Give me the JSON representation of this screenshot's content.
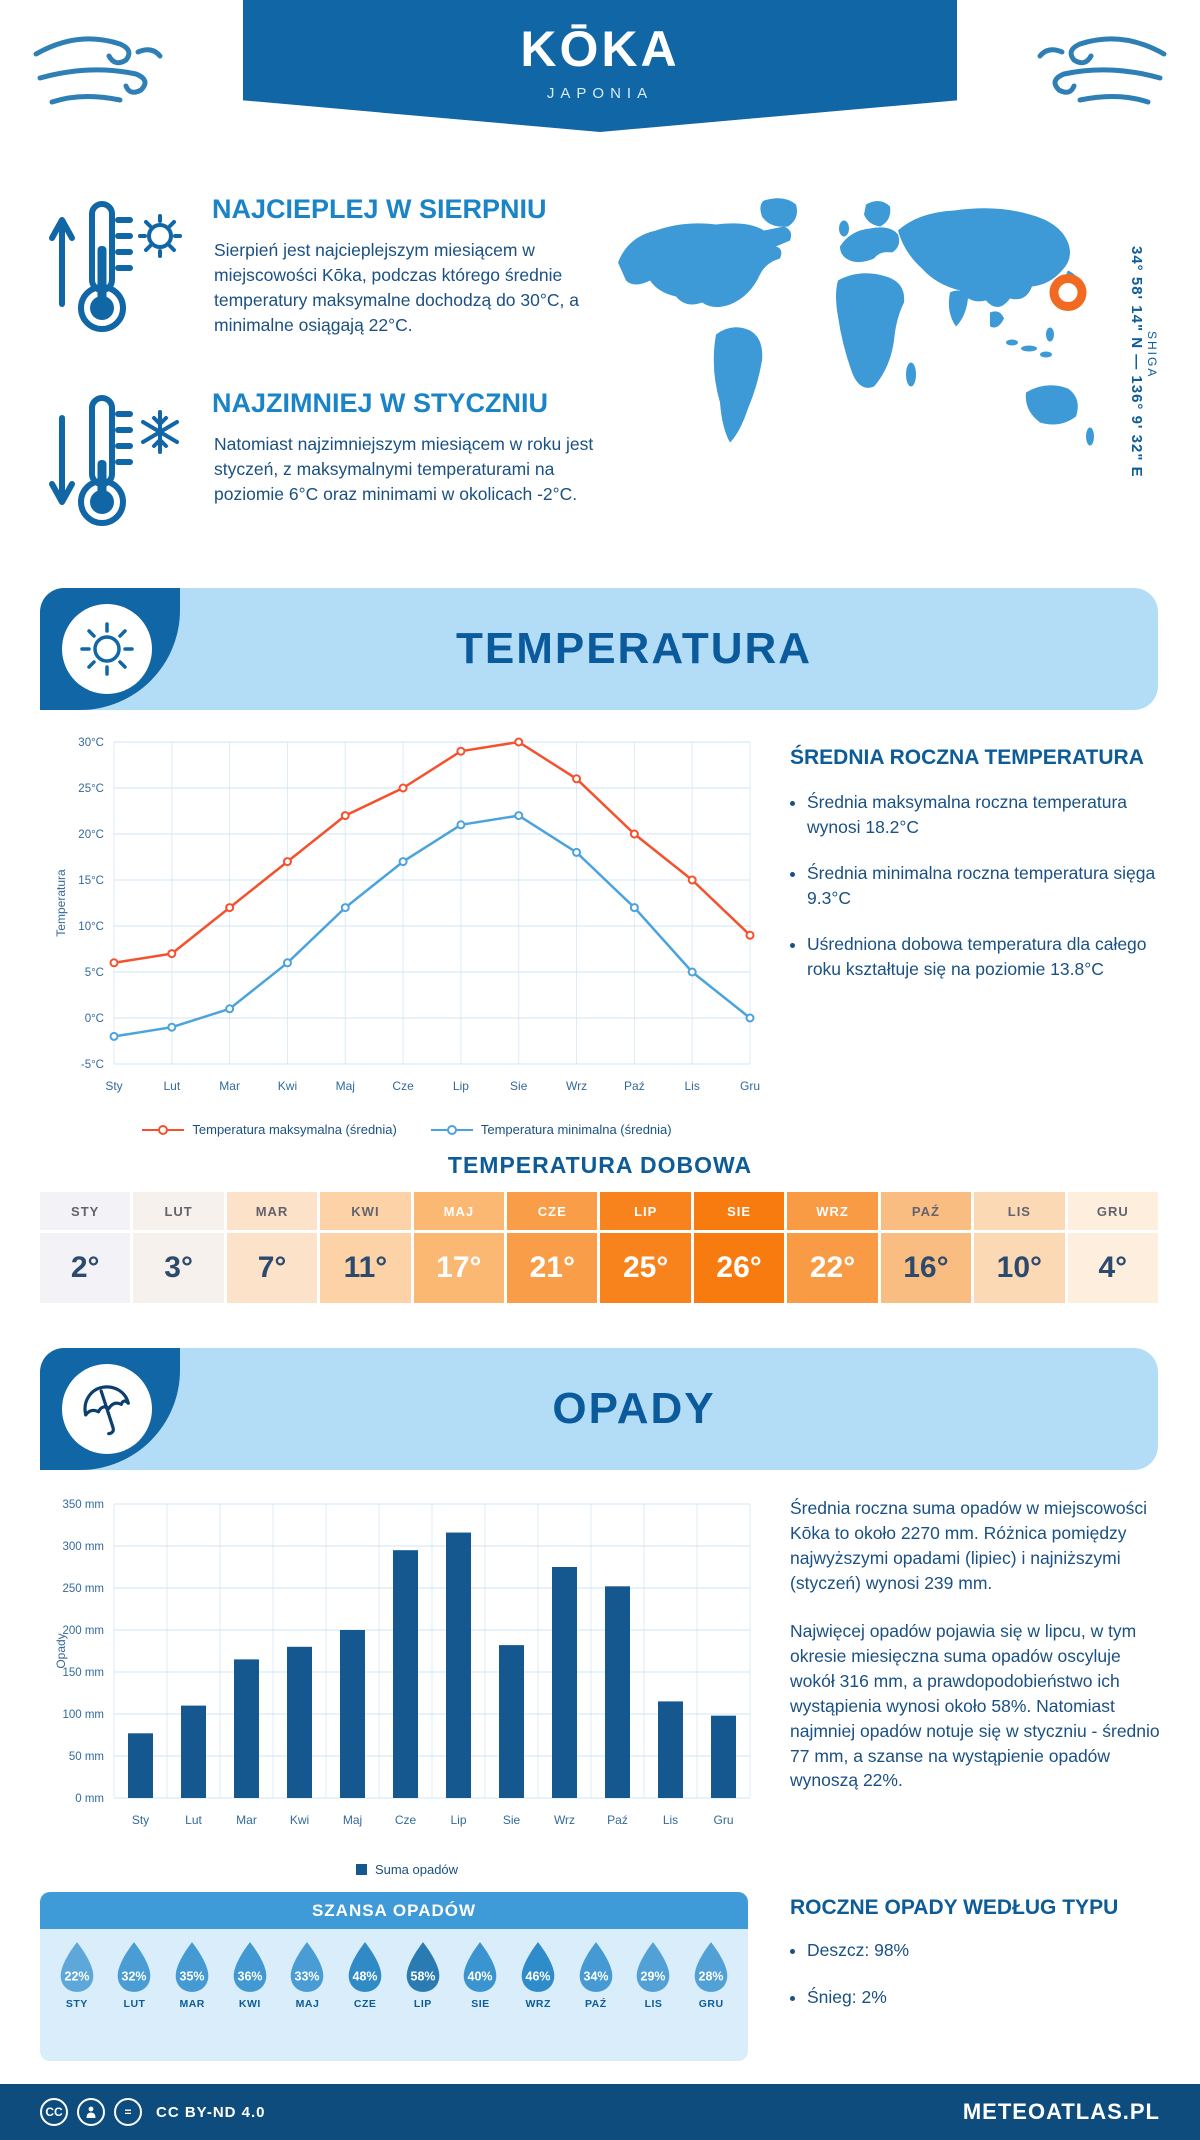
{
  "header": {
    "title": "KŌKA",
    "subtitle": "JAPONIA"
  },
  "map": {
    "region": "SHIGA",
    "coordinates": "34° 58' 14\" N — 136° 9' 32\" E"
  },
  "warmest": {
    "heading": "NAJCIEPLEJ W SIERPNIU",
    "text": "Sierpień jest najcieplejszym miesiącem w miejscowości Kōka, podczas którego średnie temperatury maksymalne dochodzą do 30°C, a minimalne osiągają 22°C."
  },
  "coldest": {
    "heading": "NAJZIMNIEJ W STYCZNIU",
    "text": "Natomiast najzimniejszym miesiącem w roku jest styczeń, z maksymalnymi temperaturami na poziomie 6°C oraz minimami w okolicach -2°C."
  },
  "temperature_section": {
    "title": "TEMPERATURA",
    "stats_heading": "ŚREDNIA ROCZNA TEMPERATURA",
    "stats": [
      "Średnia maksymalna roczna temperatura wynosi 18.2°C",
      "Średnia minimalna roczna temperatura sięga 9.3°C",
      "Uśredniona dobowa temperatura dla całego roku kształtuje się na poziomie 13.8°C"
    ],
    "daily_heading": "TEMPERATURA DOBOWA"
  },
  "precipitation_section": {
    "title": "OPADY",
    "text1": "Średnia roczna suma opadów w miejscowości Kōka to około 2270 mm. Różnica pomiędzy najwyższymi opadami (lipiec) i najniższymi (styczeń) wynosi 239 mm.",
    "text2": "Najwięcej opadów pojawia się w lipcu, w tym okresie miesięczna suma opadów oscyluje wokół 316 mm, a prawdopodobieństwo ich wystąpienia wynosi około 58%. Natomiast najmniej opadów notuje się w styczniu - średnio 77 mm, a szanse na wystąpienie opadów wynoszą 22%.",
    "chance_heading": "SZANSA OPADÓW",
    "type_heading": "ROCZNE OPADY WEDŁUG TYPU",
    "types": [
      "Deszcz: 98%",
      "Śnieg: 2%"
    ]
  },
  "chart_data": [
    {
      "type": "line",
      "categories": [
        "Sty",
        "Lut",
        "Mar",
        "Kwi",
        "Maj",
        "Cze",
        "Lip",
        "Sie",
        "Wrz",
        "Paź",
        "Lis",
        "Gru"
      ],
      "series": [
        {
          "name": "Temperatura maksymalna (średnia)",
          "color": "#f4512c",
          "values": [
            6,
            7,
            12,
            17,
            22,
            25,
            29,
            30,
            26,
            20,
            15,
            9
          ]
        },
        {
          "name": "Temperatura minimalna (średnia)",
          "color": "#4ba3dd",
          "values": [
            -2,
            -1,
            1,
            6,
            12,
            17,
            21,
            22,
            18,
            12,
            5,
            0
          ]
        }
      ],
      "ylabel": "Temperatura",
      "ylim": [
        -5,
        30
      ],
      "ytick_step": 5,
      "yunit": "°C"
    },
    {
      "type": "bar",
      "categories": [
        "Sty",
        "Lut",
        "Mar",
        "Kwi",
        "Maj",
        "Cze",
        "Lip",
        "Sie",
        "Wrz",
        "Paź",
        "Lis",
        "Gru"
      ],
      "values": [
        77,
        110,
        165,
        180,
        200,
        295,
        316,
        182,
        275,
        252,
        115,
        98
      ],
      "legend": "Suma opadów",
      "ylabel": "Opady",
      "ylim": [
        0,
        350
      ],
      "ytick_step": 50,
      "yunit": " mm",
      "bar_color": "#15578f"
    }
  ],
  "daily_table": {
    "months": [
      {
        "label": "STY",
        "value": "2°",
        "bg": "#f2f2f7",
        "light": false
      },
      {
        "label": "LUT",
        "value": "3°",
        "bg": "#f7f1ee",
        "light": false
      },
      {
        "label": "MAR",
        "value": "7°",
        "bg": "#fbe2c8",
        "light": false
      },
      {
        "label": "KWI",
        "value": "11°",
        "bg": "#fcd2a6",
        "light": false
      },
      {
        "label": "MAJ",
        "value": "17°",
        "bg": "#fab873",
        "light": true
      },
      {
        "label": "CZE",
        "value": "21°",
        "bg": "#f99d49",
        "light": true
      },
      {
        "label": "LIP",
        "value": "25°",
        "bg": "#f8831d",
        "light": true
      },
      {
        "label": "SIE",
        "value": "26°",
        "bg": "#f87b0f",
        "light": true
      },
      {
        "label": "WRZ",
        "value": "22°",
        "bg": "#f99a44",
        "light": true
      },
      {
        "label": "PAŹ",
        "value": "16°",
        "bg": "#fabd81",
        "light": false
      },
      {
        "label": "LIS",
        "value": "10°",
        "bg": "#fcd9b5",
        "light": false
      },
      {
        "label": "GRU",
        "value": "4°",
        "bg": "#fdeede",
        "light": false
      }
    ]
  },
  "rain_chance": [
    {
      "month": "STY",
      "percent": "22%"
    },
    {
      "month": "LUT",
      "percent": "32%"
    },
    {
      "month": "MAR",
      "percent": "35%"
    },
    {
      "month": "KWI",
      "percent": "36%"
    },
    {
      "month": "MAJ",
      "percent": "33%"
    },
    {
      "month": "CZE",
      "percent": "48%"
    },
    {
      "month": "LIP",
      "percent": "58%"
    },
    {
      "month": "SIE",
      "percent": "40%"
    },
    {
      "month": "WRZ",
      "percent": "46%"
    },
    {
      "month": "PAŹ",
      "percent": "34%"
    },
    {
      "month": "LIS",
      "percent": "29%"
    },
    {
      "month": "GRU",
      "percent": "28%"
    }
  ],
  "footer": {
    "license": "CC BY-ND 4.0",
    "brand": "METEOATLAS.PL"
  },
  "colors": {
    "primary_blue": "#1166a5",
    "banner_light_blue": "#b3ddf7",
    "heading_blue": "#1b84c6",
    "body_navy": "#1a5083",
    "map_land": "#3d9ad6",
    "marker_orange": "#f26a21",
    "max_line": "#f4512c",
    "min_line": "#4ba3dd",
    "bar_blue": "#15578f",
    "chance_bar_blue": "#3f9bd8",
    "footer_navy": "#0d4c7c"
  }
}
